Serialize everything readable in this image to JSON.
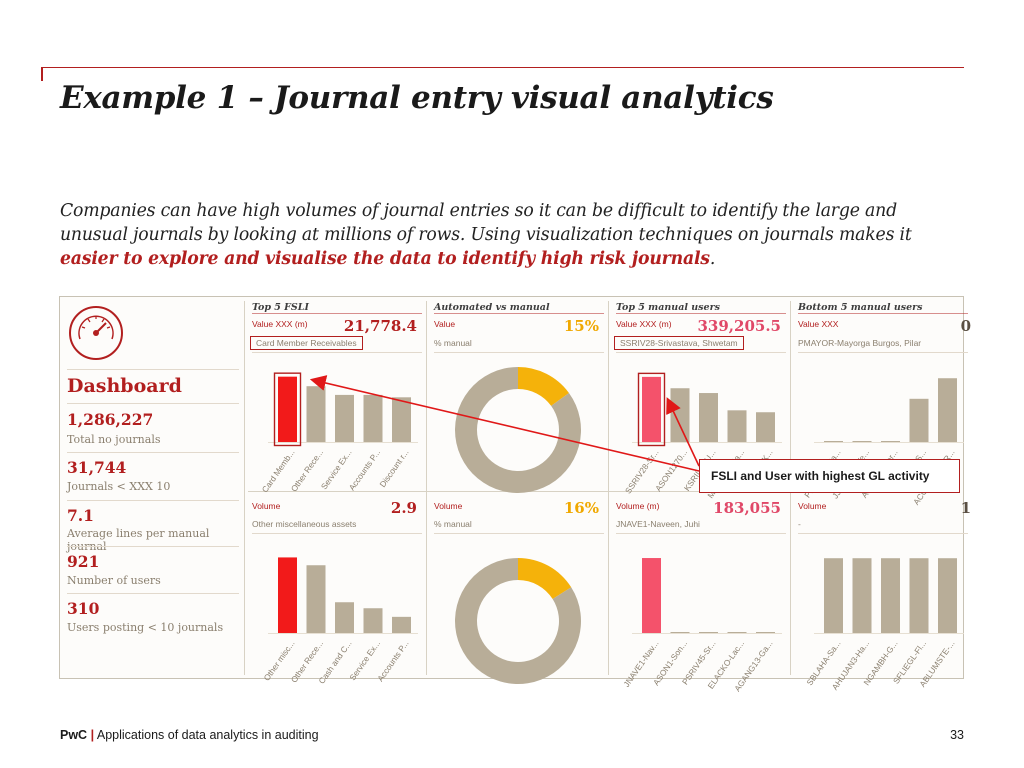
{
  "slide": {
    "title": "Example 1 – Journal entry visual analytics",
    "intro_prefix": "Companies can have high volumes of journal entries so it can be difficult to identify the large and unusual journals by looking at millions of rows. Using visualization techniques on journals makes it ",
    "intro_highlight": "easier to explore and visualise the data to identify high risk journals",
    "intro_suffix": ".",
    "footer_brand": "PwC",
    "footer_sep": "|",
    "footer_text": "Applications of data analytics in auditing",
    "page_number": "33"
  },
  "dashboard": {
    "title": "Dashboard",
    "stats": [
      {
        "value": "1,286,227",
        "label": "Total no journals"
      },
      {
        "value": "31,744",
        "label": "Journals < XXX 10"
      },
      {
        "value": "7.1",
        "label": "Average lines per manual journal"
      },
      {
        "value": "921",
        "label": "Number of users"
      },
      {
        "value": "310",
        "label": "Users posting < 10 journals"
      }
    ]
  },
  "panels": {
    "fsli_top": {
      "title": "Top 5 FSLI",
      "label": "Value XXX (m)",
      "value": "21,778.4",
      "sub": "Card Member Receivables"
    },
    "auto_top": {
      "title": "Automated vs manual",
      "label": "Value",
      "value": "15%",
      "sub": "% manual"
    },
    "users_top": {
      "title": "Top 5 manual users",
      "label": "Value XXX (m)",
      "value": "339,205.5",
      "sub": "SSRIV28-Srivastava, Shwetam"
    },
    "bottom_top": {
      "title": "Bottom 5 manual users",
      "label": "Value XXX",
      "value": "0",
      "sub": "PMAYOR-Mayorga Burgos, Pilar"
    },
    "fsli_bot": {
      "label": "Volume",
      "value": "2.9",
      "sub": "Other miscellaneous assets"
    },
    "auto_bot": {
      "label": "Volume",
      "value": "16%",
      "sub": "% manual"
    },
    "users_bot": {
      "label": "Volume (m)",
      "value": "183,055",
      "sub": "JNAVE1-Naveen, Juhi"
    },
    "bottom_bot": {
      "label": "Volume",
      "value": "1",
      "sub": "-"
    }
  },
  "callout": {
    "text": "FSLI and User with highest GL activity"
  },
  "colors": {
    "accent": "#b21f1f",
    "bar_red": "#f21a1a",
    "bar_pink": "#f4526b",
    "bar_tan": "#b8ad98",
    "donut_gold": "#f5b20a",
    "donut_tan": "#b8ad98"
  },
  "chart_data": [
    {
      "type": "bar",
      "title": "Top 5 FSLI",
      "ylabel": "Value XXX (m)",
      "categories": [
        "Card Memb...",
        "Other Rece...",
        "Service Ex...",
        "Accounts P...",
        "Discount r..."
      ],
      "values": [
        21778.4,
        18600,
        15700,
        15700,
        14900
      ],
      "ylim": [
        0,
        24000
      ],
      "highlight": 0,
      "color": "bar_red"
    },
    {
      "type": "pie",
      "title": "Automated vs manual",
      "ylabel": "Value",
      "values": [
        15,
        85
      ]
    },
    {
      "type": "bar",
      "title": "Top 5 manual users",
      "ylabel": "Value XXX (m)",
      "categories": [
        "SSRIV28-Sr...",
        "ASON1270...",
        "KSRILADU...",
        "MDASE07-Ja...",
        "LCHONG-K..."
      ],
      "values": [
        339205.5,
        280000,
        255000,
        165000,
        155000
      ],
      "ylim": [
        0,
        375000
      ],
      "highlight": 0,
      "color": "bar_pink"
    },
    {
      "type": "bar",
      "title": "Bottom 5 manual users",
      "ylabel": "Value XXX",
      "categories": [
        "PMAYOR-Ma...",
        "JJIMEN36-Ve...",
        "ANTEGO-Fer...",
        "SSRIV32-S...",
        "ACOSTA-FLOR..."
      ],
      "values": [
        0,
        0,
        0,
        2.1,
        3.1
      ],
      "ylim": [
        0,
        3.5
      ],
      "highlight": -1,
      "color": "bar_tan"
    },
    {
      "type": "bar",
      "ylabel": "Volume",
      "categories": [
        "Other misc...",
        "Other Rece...",
        "Cash and C...",
        "Service Ex...",
        "Accounts P..."
      ],
      "values": [
        2.9,
        2.6,
        1.18,
        0.95,
        0.62
      ],
      "ylim": [
        0,
        3.3
      ],
      "highlight": 0,
      "color": "bar_red"
    },
    {
      "type": "pie",
      "ylabel": "Volume",
      "values": [
        16,
        84
      ]
    },
    {
      "type": "bar",
      "ylabel": "Volume (m)",
      "categories": [
        "JNAVE1-Nav...",
        "ASON1-Son...",
        "PSRIV45-Sr...",
        "ELACKO-Lac...",
        "AGANG13-Ga..."
      ],
      "values": [
        183055,
        0,
        0,
        0,
        0
      ],
      "ylim": [
        0,
        210000
      ],
      "highlight": 0,
      "color": "bar_pink"
    },
    {
      "type": "bar",
      "ylabel": "Volume",
      "categories": [
        "SBLAHA-Sa...",
        "AHUJAN3-Ha...",
        "NGAMBH-G...",
        "SFLIEGL-Fl...",
        "ABLUMSTE-..."
      ],
      "values": [
        1,
        1,
        1,
        1,
        1
      ],
      "ylim": [
        0,
        1.15
      ],
      "highlight": -1,
      "color": "bar_tan"
    }
  ]
}
